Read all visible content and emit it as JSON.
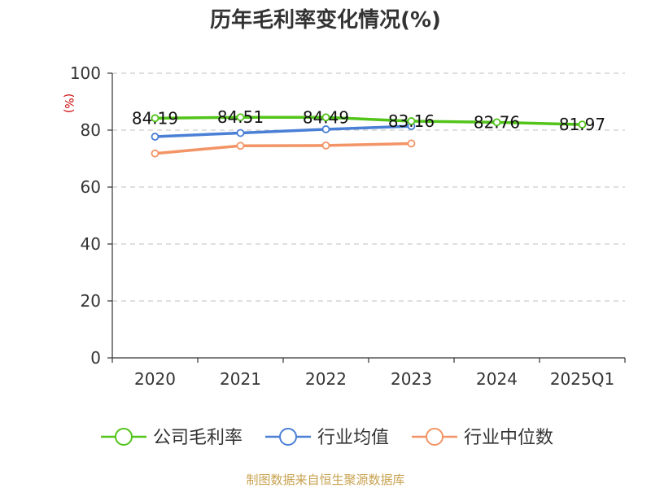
{
  "chart_data": {
    "type": "line",
    "title": "历年毛利率变化情况(%)",
    "ylabel": "(%)",
    "ylim": [
      0,
      100
    ],
    "yticks": [
      0,
      20,
      40,
      60,
      80,
      100
    ],
    "categories": [
      "2020",
      "2021",
      "2022",
      "2023",
      "2024",
      "2025Q1"
    ],
    "grid": true,
    "legend_position": "bottom",
    "series": [
      {
        "name": "公司毛利率",
        "color": "#52c41a",
        "values": [
          84.19,
          84.51,
          84.49,
          83.16,
          82.76,
          81.97
        ],
        "labels": [
          "84.19",
          "84.51",
          "84.49",
          "83.16",
          "82.76",
          "81.97"
        ]
      },
      {
        "name": "行业均值",
        "color": "#4a7fd6",
        "values": [
          77.7,
          79.0,
          80.3,
          81.4,
          null,
          null
        ]
      },
      {
        "name": "行业中位数",
        "color": "#f39466",
        "values": [
          71.8,
          74.5,
          74.6,
          75.3,
          null,
          null
        ]
      }
    ],
    "source": "制图数据来自恒生聚源数据库",
    "colors": {
      "axis": "#333333",
      "grid": "#cccccc",
      "unit": "#cc0000",
      "source": "#c8a250"
    }
  }
}
